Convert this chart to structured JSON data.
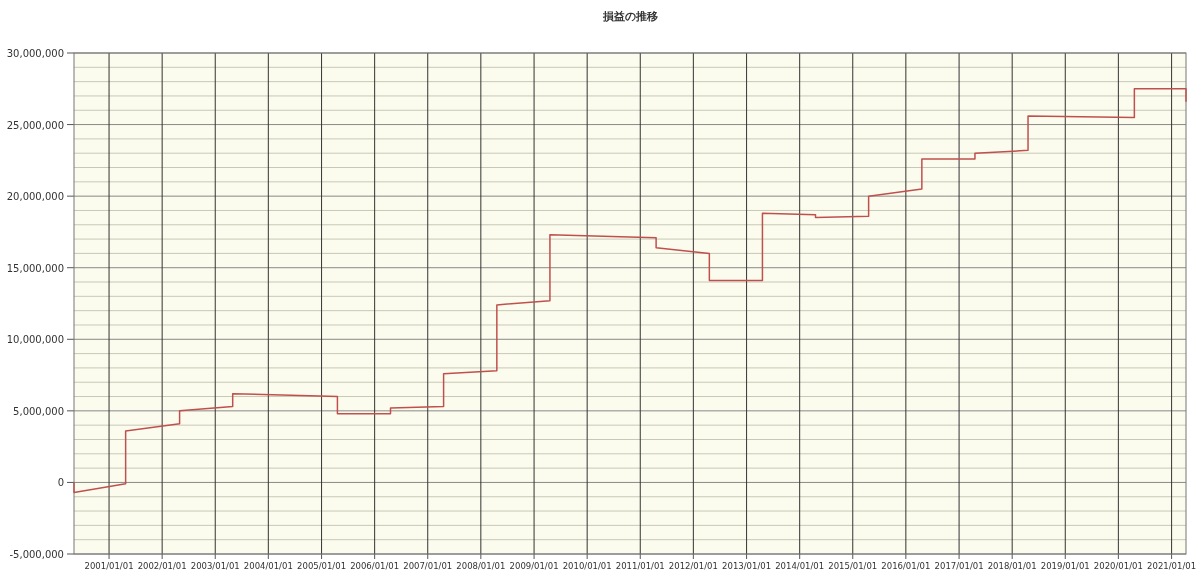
{
  "chart_data": {
    "type": "line",
    "title": "損益の推移",
    "x": [
      "2000-05-05",
      "2000-05-05",
      "2001-04-25",
      "2001-04-25",
      "2002-05-01",
      "2002-05-01",
      "2003-05-01",
      "2003-05-01",
      "2005-04-20",
      "2005-04-20",
      "2006-04-20",
      "2006-04-20",
      "2007-04-20",
      "2007-04-20",
      "2008-04-20",
      "2008-04-20",
      "2009-04-20",
      "2009-04-20",
      "2011-04-20",
      "2011-04-20",
      "2012-04-20",
      "2012-04-20",
      "2013-04-20",
      "2013-04-20",
      "2014-04-20",
      "2014-04-20",
      "2015-04-20",
      "2015-04-20",
      "2016-04-20",
      "2016-04-20",
      "2017-04-20",
      "2017-04-20",
      "2018-04-20",
      "2018-04-20",
      "2020-04-20",
      "2020-04-20",
      "2021-04-10",
      "2021-04-10"
    ],
    "series": [
      {
        "color": "#c0504d",
        "values": [
          0,
          -700000,
          -100000,
          3600000,
          4100000,
          5000000,
          5300000,
          6200000,
          6000000,
          4800000,
          4800000,
          5200000,
          5300000,
          7600000,
          7800000,
          12400000,
          12700000,
          17300000,
          17100000,
          16400000,
          16000000,
          14100000,
          14100000,
          18800000,
          18700000,
          18500000,
          18600000,
          20000000,
          20500000,
          22600000,
          22600000,
          23000000,
          23200000,
          25600000,
          25500000,
          27500000,
          27500000,
          26600000
        ]
      }
    ],
    "xlim": [
      "2000-05-05",
      "2021-04-10"
    ],
    "xticks": [
      {
        "value": "2001-01-01",
        "label": "2001/01/01"
      },
      {
        "value": "2002-01-01",
        "label": "2002/01/01"
      },
      {
        "value": "2003-01-01",
        "label": "2003/01/01"
      },
      {
        "value": "2004-01-01",
        "label": "2004/01/01"
      },
      {
        "value": "2005-01-01",
        "label": "2005/01/01"
      },
      {
        "value": "2006-01-01",
        "label": "2006/01/01"
      },
      {
        "value": "2007-01-01",
        "label": "2007/01/01"
      },
      {
        "value": "2008-01-01",
        "label": "2008/01/01"
      },
      {
        "value": "2009-01-01",
        "label": "2009/01/01"
      },
      {
        "value": "2010-01-01",
        "label": "2010/01/01"
      },
      {
        "value": "2011-01-01",
        "label": "2011/01/01"
      },
      {
        "value": "2012-01-01",
        "label": "2012/01/01"
      },
      {
        "value": "2013-01-01",
        "label": "2013/01/01"
      },
      {
        "value": "2014-01-01",
        "label": "2014/01/01"
      },
      {
        "value": "2015-01-01",
        "label": "2015/01/01"
      },
      {
        "value": "2016-01-01",
        "label": "2016/01/01"
      },
      {
        "value": "2017-01-01",
        "label": "2017/01/01"
      },
      {
        "value": "2018-01-01",
        "label": "2018/01/01"
      },
      {
        "value": "2019-01-01",
        "label": "2019/01/01"
      },
      {
        "value": "2020-01-01",
        "label": "2020/01/01"
      },
      {
        "value": "2021-01-01",
        "label": "2021/01/01"
      }
    ],
    "ylim": [
      -5000000,
      30000000
    ],
    "yticks": [
      {
        "value": -5000000,
        "label": "-5,000,000"
      },
      {
        "value": -4000000,
        "label": null
      },
      {
        "value": -3000000,
        "label": null
      },
      {
        "value": -2000000,
        "label": null
      },
      {
        "value": -1000000,
        "label": null
      },
      {
        "value": 0,
        "label": "0"
      },
      {
        "value": 1000000,
        "label": null
      },
      {
        "value": 2000000,
        "label": null
      },
      {
        "value": 3000000,
        "label": null
      },
      {
        "value": 4000000,
        "label": null
      },
      {
        "value": 5000000,
        "label": "5,000,000"
      },
      {
        "value": 6000000,
        "label": null
      },
      {
        "value": 7000000,
        "label": null
      },
      {
        "value": 8000000,
        "label": null
      },
      {
        "value": 9000000,
        "label": null
      },
      {
        "value": 10000000,
        "label": "10,000,000"
      },
      {
        "value": 11000000,
        "label": null
      },
      {
        "value": 12000000,
        "label": null
      },
      {
        "value": 13000000,
        "label": null
      },
      {
        "value": 14000000,
        "label": null
      },
      {
        "value": 15000000,
        "label": "15,000,000"
      },
      {
        "value": 16000000,
        "label": null
      },
      {
        "value": 17000000,
        "label": null
      },
      {
        "value": 18000000,
        "label": null
      },
      {
        "value": 19000000,
        "label": null
      },
      {
        "value": 20000000,
        "label": "20,000,000"
      },
      {
        "value": 21000000,
        "label": null
      },
      {
        "value": 22000000,
        "label": null
      },
      {
        "value": 23000000,
        "label": null
      },
      {
        "value": 24000000,
        "label": null
      },
      {
        "value": 25000000,
        "label": "25,000,000"
      },
      {
        "value": 26000000,
        "label": null
      },
      {
        "value": 27000000,
        "label": null
      },
      {
        "value": 28000000,
        "label": null
      },
      {
        "value": 29000000,
        "label": null
      },
      {
        "value": 30000000,
        "label": "30,000,000"
      }
    ],
    "grid": true,
    "marker": "none",
    "line_style": "solid"
  }
}
